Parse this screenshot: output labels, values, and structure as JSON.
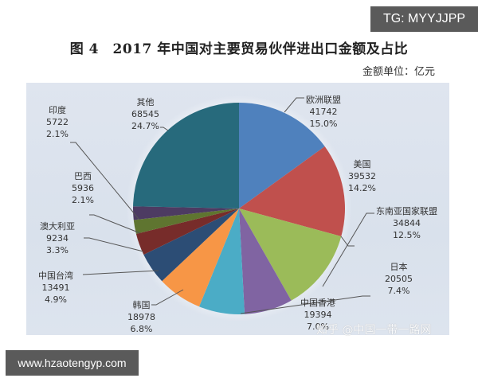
{
  "watermarks": {
    "top_right": "TG: MYYJJPP",
    "bottom_left": "www.hzaotengyp.com",
    "source": "知乎 @中国一带一路网"
  },
  "chart_data": {
    "type": "pie",
    "title": "图 4　2017 年中国对主要贸易伙伴进出口金额及占比",
    "unit_label": "金额单位：亿元",
    "legend": "none (data labels with leader lines)",
    "slices": [
      {
        "name": "欧洲联盟",
        "value": 41742,
        "percent": "15.0%",
        "color": "#4f81bd"
      },
      {
        "name": "美国",
        "value": 39532,
        "percent": "14.2%",
        "color": "#c0504d"
      },
      {
        "name": "东南亚国家联盟",
        "value": 34844,
        "percent": "12.5%",
        "color": "#9bbb59"
      },
      {
        "name": "日本",
        "value": 20505,
        "percent": "7.4%",
        "color": "#8064a2"
      },
      {
        "name": "中国香港",
        "value": 19394,
        "percent": "7.0%",
        "color": "#4bacc6"
      },
      {
        "name": "韩国",
        "value": 18978,
        "percent": "6.8%",
        "color": "#f79646"
      },
      {
        "name": "中国台湾",
        "value": 13491,
        "percent": "4.9%",
        "color": "#2c4d75"
      },
      {
        "name": "澳大利亚",
        "value": 9234,
        "percent": "3.3%",
        "color": "#772c2a"
      },
      {
        "name": "巴西",
        "value": 5936,
        "percent": "2.1%",
        "color": "#5f7530"
      },
      {
        "name": "印度",
        "value": 5722,
        "percent": "2.1%",
        "color": "#4d3b62"
      },
      {
        "name": "其他",
        "value": 68545,
        "percent": "24.7%",
        "color": "#276a7c"
      }
    ],
    "categories": [
      "欧洲联盟",
      "美国",
      "东南亚国家联盟",
      "日本",
      "中国香港",
      "韩国",
      "中国台湾",
      "澳大利亚",
      "巴西",
      "印度",
      "其他"
    ],
    "values": [
      41742,
      39532,
      34844,
      20505,
      19394,
      18978,
      13491,
      9234,
      5936,
      5722,
      68545
    ]
  },
  "labels": {
    "eu": {
      "name": "欧洲联盟",
      "value": "41742",
      "pct": "15.0%"
    },
    "us": {
      "name": "美国",
      "value": "39532",
      "pct": "14.2%"
    },
    "asean": {
      "name": "东南亚国家联盟",
      "value": "34844",
      "pct": "12.5%"
    },
    "japan": {
      "name": "日本",
      "value": "20505",
      "pct": "7.4%"
    },
    "hk": {
      "name": "中国香港",
      "value": "19394",
      "pct": "7.0%"
    },
    "korea": {
      "name": "韩国",
      "value": "18978",
      "pct": "6.8%"
    },
    "taiwan": {
      "name": "中国台湾",
      "value": "13491",
      "pct": "4.9%"
    },
    "australia": {
      "name": "澳大利亚",
      "value": "9234",
      "pct": "3.3%"
    },
    "brazil": {
      "name": "巴西",
      "value": "5936",
      "pct": "2.1%"
    },
    "india": {
      "name": "印度",
      "value": "5722",
      "pct": "2.1%"
    },
    "other": {
      "name": "其他",
      "value": "68545",
      "pct": "24.7%"
    }
  }
}
